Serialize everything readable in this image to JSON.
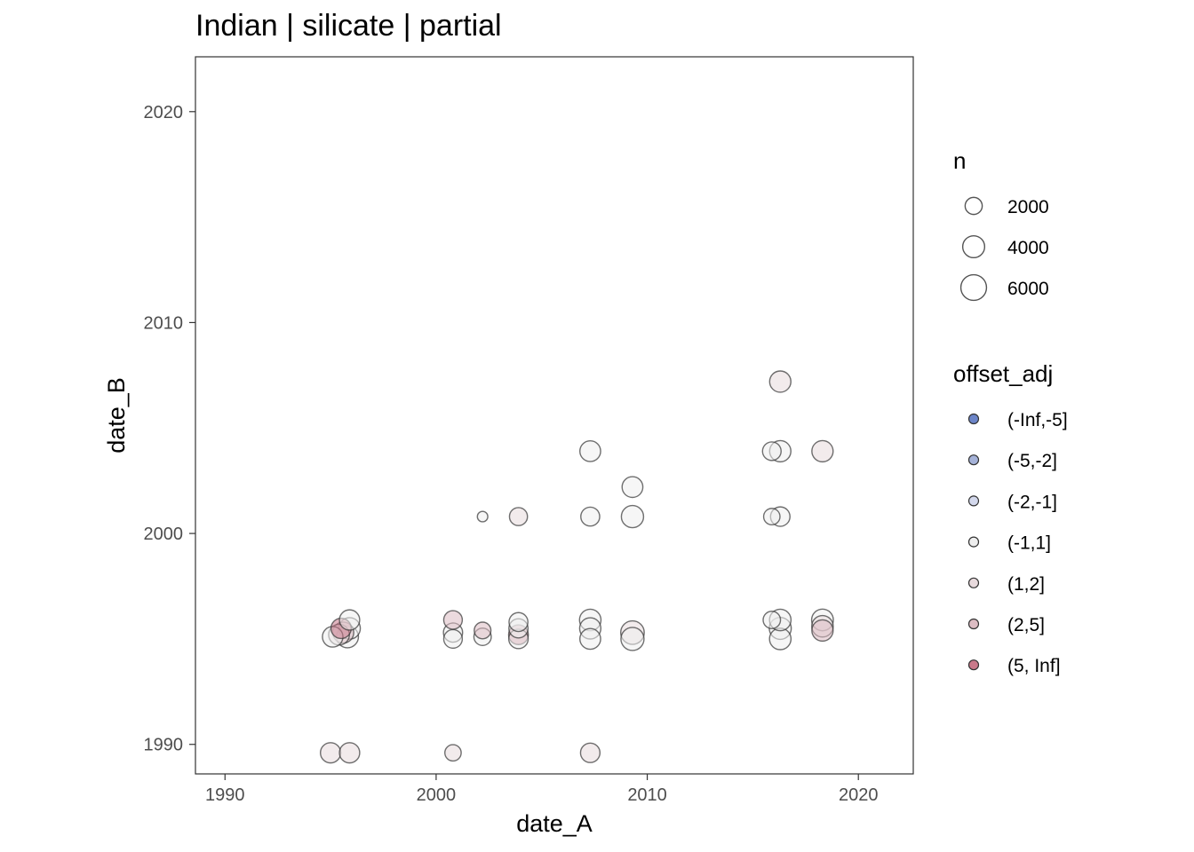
{
  "chart_data": {
    "type": "scatter",
    "title": "Indian | silicate | partial",
    "xlabel": "date_A",
    "ylabel": "date_B",
    "xlim": [
      1988.6,
      2022.6
    ],
    "ylim": [
      1988.6,
      2022.6
    ],
    "x_ticks": [
      1990,
      2000,
      2010,
      2020
    ],
    "y_ticks": [
      1990,
      2000,
      2010,
      2020
    ],
    "grid": false,
    "legend_position": "right",
    "size_legend": {
      "title": "n",
      "entries": [
        {
          "label": "2000",
          "value": 2000
        },
        {
          "label": "4000",
          "value": 4000
        },
        {
          "label": "6000",
          "value": 6000
        }
      ]
    },
    "color_legend": {
      "title": "offset_adj",
      "entries": [
        {
          "label": "(-Inf,-5]",
          "color": "#6c85c8"
        },
        {
          "label": "(-5,-2]",
          "color": "#a5b2d8"
        },
        {
          "label": "(-2,-1]",
          "color": "#d3d8ec"
        },
        {
          "label": "(-1,1]",
          "color": "#eeeeee"
        },
        {
          "label": "(1,2]",
          "color": "#e8dadd"
        },
        {
          "label": "(2,5]",
          "color": "#dcbcc3"
        },
        {
          "label": "(5, Inf]",
          "color": "#c9798a"
        }
      ]
    },
    "points": [
      {
        "x": 1995.1,
        "y": 1995.1,
        "n": 2900,
        "offset": "(-1,1]"
      },
      {
        "x": 1995.4,
        "y": 1995.2,
        "n": 3000,
        "offset": "(1,2]"
      },
      {
        "x": 1995.6,
        "y": 1995.3,
        "n": 3100,
        "offset": "(2,5]"
      },
      {
        "x": 1995.5,
        "y": 1995.5,
        "n": 2800,
        "offset": "(5, Inf]"
      },
      {
        "x": 1995.8,
        "y": 1995.1,
        "n": 3500,
        "offset": "(-1,1]"
      },
      {
        "x": 1995.9,
        "y": 1995.5,
        "n": 3300,
        "offset": "(-1,1]"
      },
      {
        "x": 1995.9,
        "y": 1995.9,
        "n": 2800,
        "offset": "(-1,1]"
      },
      {
        "x": 1995.0,
        "y": 1989.6,
        "n": 2800,
        "offset": "(1,2]"
      },
      {
        "x": 1995.9,
        "y": 1989.6,
        "n": 2800,
        "offset": "(1,2]"
      },
      {
        "x": 2000.8,
        "y": 1995.0,
        "n": 2200,
        "offset": "(-1,1]"
      },
      {
        "x": 2000.8,
        "y": 1995.3,
        "n": 2400,
        "offset": "(-1,1]"
      },
      {
        "x": 2000.8,
        "y": 1995.9,
        "n": 2200,
        "offset": "(2,5]"
      },
      {
        "x": 2000.8,
        "y": 1989.6,
        "n": 1500,
        "offset": "(1,2]"
      },
      {
        "x": 2002.2,
        "y": 2000.8,
        "n": 300,
        "offset": "(-1,1]"
      },
      {
        "x": 2002.2,
        "y": 1995.1,
        "n": 1800,
        "offset": "(-1,1]"
      },
      {
        "x": 2002.2,
        "y": 1995.4,
        "n": 1600,
        "offset": "(2,5]"
      },
      {
        "x": 2003.9,
        "y": 2000.8,
        "n": 2000,
        "offset": "(1,2]"
      },
      {
        "x": 2003.9,
        "y": 1995.0,
        "n": 2500,
        "offset": "(-1,1]"
      },
      {
        "x": 2003.9,
        "y": 1995.2,
        "n": 2600,
        "offset": "(5, Inf]"
      },
      {
        "x": 2003.9,
        "y": 1995.5,
        "n": 2400,
        "offset": "(-1,1]"
      },
      {
        "x": 2003.9,
        "y": 1995.8,
        "n": 2300,
        "offset": "(-1,1]"
      },
      {
        "x": 2007.3,
        "y": 2003.9,
        "n": 3000,
        "offset": "(-1,1]"
      },
      {
        "x": 2007.3,
        "y": 2000.8,
        "n": 2300,
        "offset": "(-1,1]"
      },
      {
        "x": 2007.3,
        "y": 1995.0,
        "n": 3000,
        "offset": "(-1,1]"
      },
      {
        "x": 2007.3,
        "y": 1995.5,
        "n": 3200,
        "offset": "(-1,1]"
      },
      {
        "x": 2007.3,
        "y": 1995.9,
        "n": 3300,
        "offset": "(-1,1]"
      },
      {
        "x": 2007.3,
        "y": 1989.6,
        "n": 2500,
        "offset": "(1,2]"
      },
      {
        "x": 2009.3,
        "y": 2002.2,
        "n": 3000,
        "offset": "(-1,1]"
      },
      {
        "x": 2009.3,
        "y": 2000.8,
        "n": 3600,
        "offset": "(-1,1]"
      },
      {
        "x": 2009.3,
        "y": 1995.0,
        "n": 4000,
        "offset": "(-1,1]"
      },
      {
        "x": 2009.3,
        "y": 1995.3,
        "n": 4200,
        "offset": "(1,2]"
      },
      {
        "x": 2016.3,
        "y": 2007.2,
        "n": 3200,
        "offset": "(1,2]"
      },
      {
        "x": 2015.9,
        "y": 2003.9,
        "n": 2200,
        "offset": "(-1,1]"
      },
      {
        "x": 2016.3,
        "y": 2003.9,
        "n": 3200,
        "offset": "(-1,1]"
      },
      {
        "x": 2015.9,
        "y": 2000.8,
        "n": 1500,
        "offset": "(-1,1]"
      },
      {
        "x": 2016.3,
        "y": 2000.8,
        "n": 2500,
        "offset": "(-1,1]"
      },
      {
        "x": 2016.3,
        "y": 1995.0,
        "n": 3300,
        "offset": "(-1,1]"
      },
      {
        "x": 2016.3,
        "y": 1995.5,
        "n": 3500,
        "offset": "(-1,1]"
      },
      {
        "x": 2016.3,
        "y": 1995.9,
        "n": 3300,
        "offset": "(-1,1]"
      },
      {
        "x": 2015.9,
        "y": 1995.9,
        "n": 1800,
        "offset": "(-1,1]"
      },
      {
        "x": 2018.3,
        "y": 2003.9,
        "n": 3200,
        "offset": "(1,2]"
      },
      {
        "x": 2018.3,
        "y": 1995.4,
        "n": 3200,
        "offset": "(2,5]"
      },
      {
        "x": 2018.3,
        "y": 1995.6,
        "n": 3300,
        "offset": "(1,2]"
      },
      {
        "x": 2018.3,
        "y": 1995.9,
        "n": 3400,
        "offset": "(-1,1]"
      }
    ]
  }
}
